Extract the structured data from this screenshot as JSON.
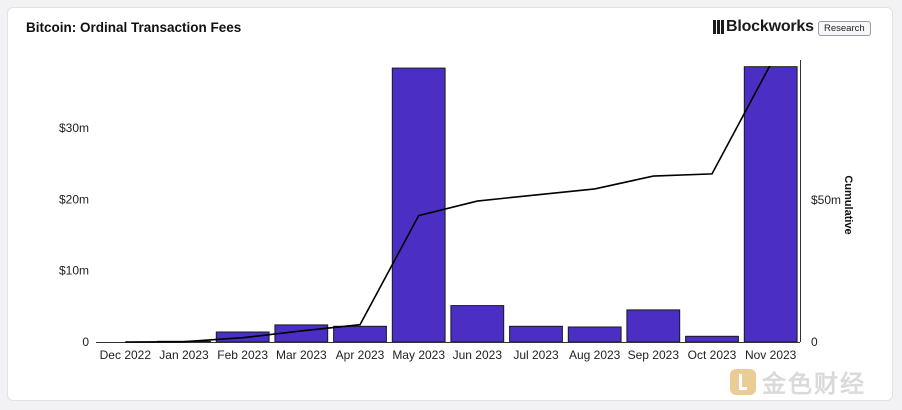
{
  "header": {
    "title": "Bitcoin: Ordinal Transaction Fees",
    "brand": "Blockworks",
    "badge": "Research"
  },
  "watermark": {
    "text": "金色财经"
  },
  "colors": {
    "bar": "#4b2fc4",
    "bar_stroke": "#1a1a1a",
    "line": "#000000",
    "axis": "#333333"
  },
  "chart_data": {
    "type": "bar",
    "categories": [
      "Dec 2022",
      "Jan 2023",
      "Feb 2023",
      "Mar 2023",
      "Apr 2023",
      "May 2023",
      "Jun 2023",
      "Jul 2023",
      "Aug 2023",
      "Sep 2023",
      "Oct 2023",
      "Nov 2023"
    ],
    "series": [
      {
        "type": "bar",
        "axis": "left",
        "values": [
          0.0,
          0.1,
          1.4,
          2.4,
          2.2,
          38.4,
          5.1,
          2.2,
          2.1,
          4.5,
          0.8,
          38.6
        ]
      },
      {
        "name": "Cumulative",
        "type": "line",
        "axis": "right",
        "values": [
          0.0,
          0.1,
          1.5,
          3.9,
          6.1,
          44.5,
          49.6,
          51.8,
          53.9,
          58.4,
          59.2,
          97.8
        ]
      }
    ],
    "y_left": {
      "ticks": [
        0,
        10,
        20,
        30
      ],
      "tick_labels": [
        "0",
        "$10m",
        "$20m",
        "$30m"
      ],
      "range": [
        0,
        38.6
      ]
    },
    "y_right": {
      "label": "Cumulative",
      "ticks": [
        0,
        50
      ],
      "tick_labels": [
        "0",
        "$50m"
      ],
      "range": [
        0,
        97.8
      ]
    },
    "grid": false,
    "legend": "none"
  }
}
